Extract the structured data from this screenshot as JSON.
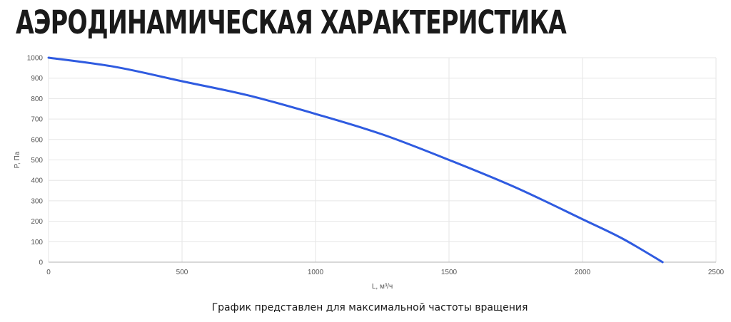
{
  "header": {
    "title": "АЭРОДИНАМИЧЕСКАЯ ХАРАКТЕРИСТИКА"
  },
  "chart_data": {
    "type": "line",
    "title": "",
    "xlabel": "L, м³/ч",
    "ylabel": "P, Па",
    "xlim": [
      0,
      2500
    ],
    "ylim": [
      0,
      1000
    ],
    "x_ticks": [
      0,
      500,
      1000,
      1500,
      2000,
      2500
    ],
    "y_ticks": [
      0,
      100,
      200,
      300,
      400,
      500,
      600,
      700,
      800,
      900,
      1000
    ],
    "grid": true,
    "legend": "none",
    "series": [
      {
        "color": "#2f5be0",
        "x": [
          0,
          250,
          500,
          750,
          1000,
          1250,
          1500,
          1750,
          2000,
          2150,
          2300
        ],
        "y": [
          1000,
          955,
          885,
          815,
          725,
          625,
          500,
          365,
          210,
          115,
          0
        ]
      }
    ]
  },
  "main": {
    "caption": "График представлен для максимальной частоты вращения"
  }
}
